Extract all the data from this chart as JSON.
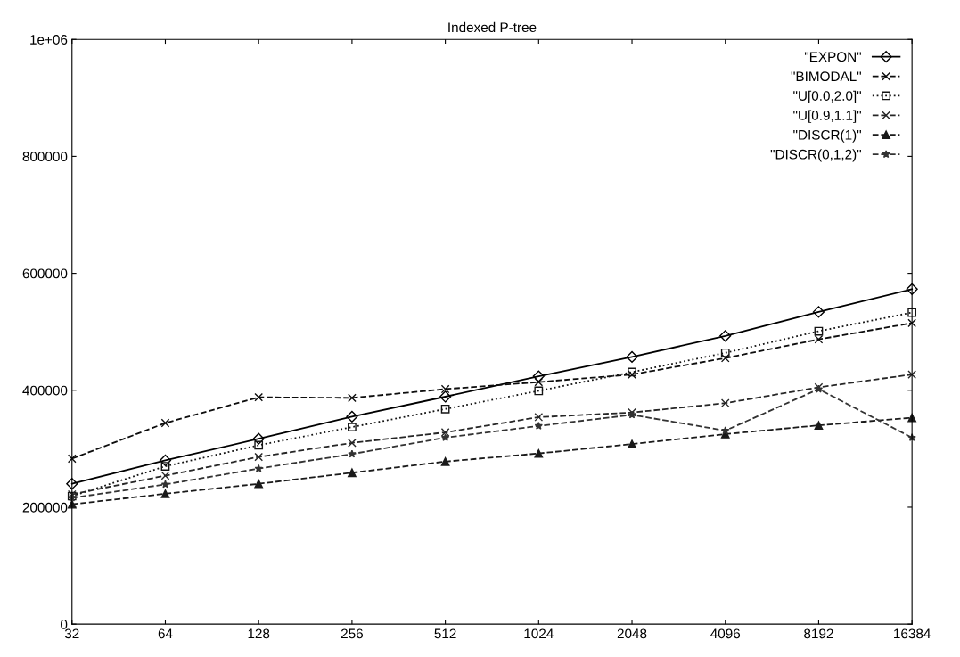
{
  "chart_data": {
    "type": "line",
    "title": "Indexed P-tree",
    "categories": [
      "32",
      "64",
      "128",
      "256",
      "512",
      "1024",
      "2048",
      "4096",
      "8192",
      "16384"
    ],
    "series": [
      {
        "name": "\"EXPON\"",
        "color": "#000000",
        "marker": "diamond",
        "line_style": "solid",
        "values": [
          240000,
          280000,
          317000,
          355000,
          389000,
          424000,
          457000,
          493000,
          534000,
          573000
        ]
      },
      {
        "name": "\"BIMODAL\"",
        "color": "#0d0d0d",
        "marker": "cross",
        "line_style": "dashed",
        "values": [
          283000,
          344000,
          388000,
          387000,
          402000,
          414000,
          427000,
          455000,
          487000,
          515000
        ]
      },
      {
        "name": "\"U[0.0,2.0]\"",
        "color": "#141414",
        "marker": "square",
        "line_style": "dotted",
        "values": [
          219000,
          270000,
          306000,
          337000,
          368000,
          399000,
          431000,
          464000,
          501000,
          533000
        ]
      },
      {
        "name": "\"U[0.9,1.1]\"",
        "color": "#262626",
        "marker": "cross",
        "line_style": "dashed",
        "values": [
          222000,
          254000,
          286000,
          310000,
          328000,
          354000,
          362000,
          378000,
          405000,
          427000
        ]
      },
      {
        "name": "\"DISCR(1)\"",
        "color": "#1a1a1a",
        "marker": "triangle",
        "line_style": "dashed",
        "values": [
          205000,
          223000,
          240000,
          259000,
          278000,
          292000,
          308000,
          325000,
          340000,
          353000
        ]
      },
      {
        "name": "\"DISCR(0,1,2)\"",
        "color": "#333333",
        "marker": "star",
        "line_style": "dashed",
        "values": [
          216000,
          239000,
          266000,
          291000,
          319000,
          339000,
          358000,
          331000,
          402000,
          319000
        ]
      }
    ],
    "ylim": [
      0,
      1000000
    ],
    "yticks": [
      0,
      200000,
      400000,
      600000,
      800000,
      {
        "value": 1000000,
        "label": "1e+06"
      }
    ],
    "grid": false,
    "legend": "top right"
  }
}
